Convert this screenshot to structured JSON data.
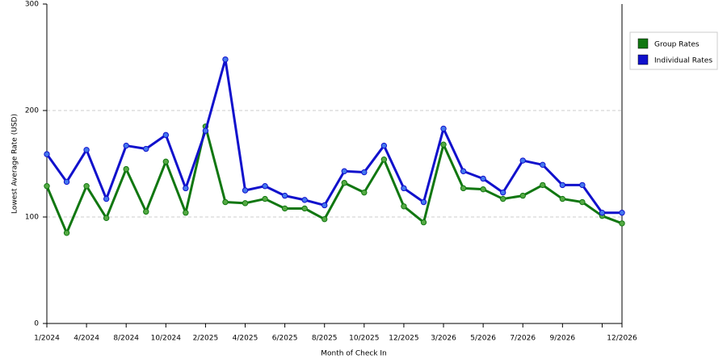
{
  "chart_data": {
    "type": "line",
    "x_label": "Month of Check In",
    "y_label": "Lowest Average Rate (USD)",
    "categories": [
      "1/2024",
      null,
      "4/2024",
      null,
      "8/2024",
      null,
      "10/2024",
      null,
      "2/2025",
      null,
      "4/2025",
      null,
      "6/2025",
      null,
      "8/2025",
      null,
      "10/2025",
      null,
      "12/2025",
      null,
      "3/2026",
      null,
      "5/2026",
      null,
      "7/2026",
      null,
      "9/2026",
      null,
      null,
      "12/2026"
    ],
    "series": [
      {
        "name": "Group Rates",
        "color": "#117711",
        "marker_color": "#55aa44",
        "values": [
          129,
          85,
          129,
          99,
          145,
          105,
          152,
          104,
          185,
          114,
          113,
          117,
          108,
          108,
          98,
          132,
          123,
          154,
          110,
          95,
          168,
          127,
          126,
          117,
          120,
          130,
          117,
          114,
          101,
          94
        ]
      },
      {
        "name": "Individual Rates",
        "color": "#1111cc",
        "marker_color": "#4477ee",
        "values": [
          159,
          133,
          163,
          117,
          167,
          164,
          177,
          127,
          181,
          248,
          125,
          129,
          120,
          116,
          111,
          143,
          142,
          167,
          127,
          114,
          183,
          143,
          136,
          123,
          153,
          149,
          130,
          130,
          104,
          104
        ]
      }
    ],
    "ylim": [
      0,
      300
    ],
    "yticks": [
      0,
      100,
      200,
      300
    ],
    "grid": true,
    "legend": "right"
  }
}
